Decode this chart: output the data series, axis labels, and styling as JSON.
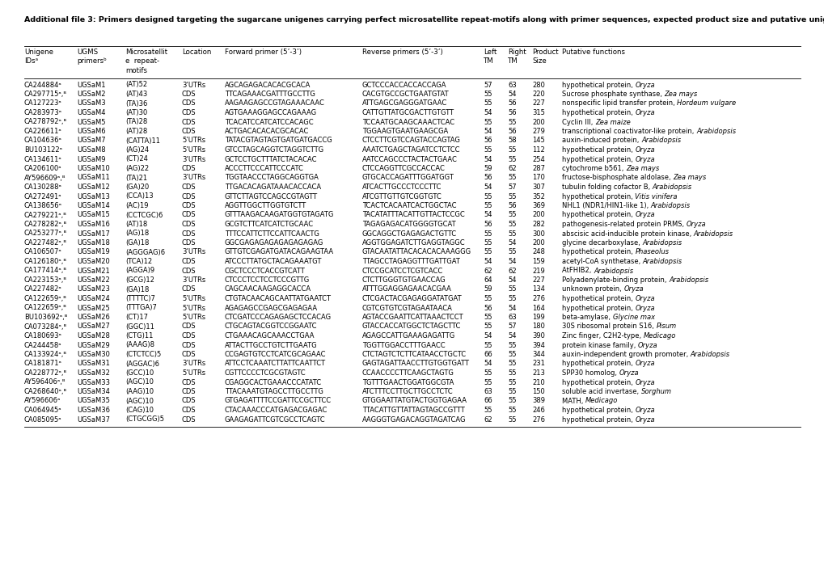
{
  "title": "Additional file 3: Primers designed targeting the sugarcane unigenes carrying perfect microsatellite repeat-motifs along with primer sequences, expected product size and putative unigene function",
  "rows": [
    [
      "CA244884ᵃ",
      "UGSaM1",
      "(AT)52",
      "3’UTRs",
      "AGCAGAGACACACGCACA",
      "GCTCCCACCACCACCAGA",
      "57",
      "63",
      "280",
      "hypothetical protein, Oryza"
    ],
    [
      "CA297715ᵃ,ᴮ",
      "UGSaM2",
      "(AT)43",
      "CDS",
      "TTCAGAAACGATTTGCCTTG",
      "CACGTGCCGCTGAATGTAT",
      "55",
      "54",
      "220",
      "Sucrose phosphate synthase, Zea mays"
    ],
    [
      "CA127223ᵃ",
      "UGSaM3",
      "(TA)36",
      "CDS",
      "AAGAAGAGCCGTAGAAACAAC",
      "ATTGAGCGAGGGATGAAC",
      "55",
      "56",
      "227",
      "nonspecific lipid transfer protein, Hordeum vulgare"
    ],
    [
      "CA283973ᵃ",
      "UGSaM4",
      "(AT)30",
      "CDS",
      "AGTGAAAGGAGCCAGAAAG",
      "CATTGTTATGCGACTTGTGTT",
      "54",
      "56",
      "315",
      "hypothetical protein, Oryza"
    ],
    [
      "CA278792ᵃ,ᴮ",
      "UGSaM5",
      "(TA)28",
      "CDS",
      "TCACATCCATCATCCACAGC",
      "TCCAATGCAAGCAAACTCAC",
      "55",
      "55",
      "200",
      "Cyclin III, Zea maize"
    ],
    [
      "CA226611ᵃ",
      "UGSaM6",
      "(AT)28",
      "CDS",
      "ACTGACACACACGCACAC",
      "TGGAAGTGAATGAAGCGA",
      "54",
      "56",
      "279",
      "transcriptional coactivator-like protein, Arabidopsis"
    ],
    [
      "CA104636ᵃ",
      "UGSaM7",
      "(CATTA)11",
      "5’UTRs",
      "TATACGTAGTAGTGATGATGACCG",
      "CTCCTTCGTCCAGTACCAGTAG",
      "56",
      "58",
      "145",
      "auxin-induced protein, Arabidopsis"
    ],
    [
      "BU103122ᵃ",
      "UGSaM8",
      "(AG)24",
      "5’UTRs",
      "GTCCTAGCAGGTCTAGGTCTTG",
      "AAATCTGAGCTAGATCCTCTCC",
      "55",
      "55",
      "112",
      "hypothetical protein, Oryza"
    ],
    [
      "CA134611ᵃ",
      "UGSaM9",
      "(CT)24",
      "3’UTRs",
      "GCTCCTGCTTTATCTACACAC",
      "AATCCAGCCCTACTACTGAAC",
      "54",
      "55",
      "254",
      "hypothetical protein, Oryza"
    ],
    [
      "CA206100ᵃ",
      "UGSaM10",
      "(AG)22",
      "CDS",
      "ACCCTTCCCATTCCCATC",
      "CTCCAGGTTCGCCACCAC",
      "59",
      "62",
      "287",
      "cytochrome b561, Zea mays"
    ],
    [
      "AY596609ᵃ,ᴮ",
      "UGSaM11",
      "(TA)21",
      "3’UTRs",
      "TGGTAACCCTAGGCAGGTGA",
      "GTGCACCAGATTTGGATGGT",
      "56",
      "55",
      "170",
      "fructose-bisphosphate aldolase, Zea mays"
    ],
    [
      "CA130288ᵃ",
      "UGSaM12",
      "(GA)20",
      "CDS",
      "TTGACACAGATAAACACCACA",
      "ATCACTTGCCCTCCCTTC",
      "54",
      "57",
      "307",
      "tubulin folding cofactor B, Arabidopsis"
    ],
    [
      "CA272491ᵃ",
      "UGSaM13",
      "(CCA)13",
      "CDS",
      "GTTCTTAGTCCAGCCGTAGTT",
      "ATCGTTGTTGTCGGTGTC",
      "55",
      "55",
      "352",
      "hypothetical protein, Vitis vinifera"
    ],
    [
      "CA138656ᵃ",
      "UGSaM14",
      "(AC)19",
      "CDS",
      "AGGTTGGCTTGGTGTCTT",
      "TCACTCACAATCACTGGCTAC",
      "55",
      "56",
      "369",
      "NHL1 (NDR1/HIN1-like 1), Arabidopsis"
    ],
    [
      "CA279221ᵃ,ᴮ",
      "UGSaM15",
      "(CCTCGC)6",
      "CDS",
      "GTTTAAGACAAGATGGTGTAGATG",
      "TACATATTTACATTGTTACTCCGC",
      "54",
      "55",
      "200",
      "hypothetical protein, Oryza"
    ],
    [
      "CA278282ᵃ,ᴮ",
      "UGSaM16",
      "(AT)18",
      "CDS",
      "GCGTCTTCATCATCTGCAAC",
      "TAGAGAGACATGGGGTGCAT",
      "56",
      "55",
      "282",
      "pathogenesis-related protein PRMS, Oryza"
    ],
    [
      "CA253277ᵃ,ᴮ",
      "UGSaM17",
      "(AG)18",
      "CDS",
      "TTTCCATTCTTCCATTCAACTG",
      "GGCAGGCTGAGAGACTGTTC",
      "55",
      "55",
      "300",
      "abscisic acid-inducible protein kinase, Arabidopsis"
    ],
    [
      "CA227482ᵃ,ᴮ",
      "UGSaM18",
      "(GA)18",
      "CDS",
      "GGCGAGAGAGAGAGAGAGAG",
      "AGGTGGAGATCTTGAGGTAGGC",
      "55",
      "54",
      "200",
      "glycine decarboxylase, Arabidopsis"
    ],
    [
      "CA106507ᵃ",
      "UGSaM19",
      "(AGGGAG)6",
      "3’UTRs",
      "GTTGTCGAGATGATACAGAAGTAA",
      "GTACAATATTACACACACAAAGGG",
      "55",
      "55",
      "248",
      "hypothetical protein, Phaseolus"
    ],
    [
      "CA126180ᵃ,ᴮ",
      "UGSaM20",
      "(TCA)12",
      "CDS",
      "ATCCCTTATGCTACAGAAATGT",
      "TTAGCCTAGAGGTTTGATTGAT",
      "54",
      "54",
      "159",
      "acetyl-CoA synthetase, Arabidopsis"
    ],
    [
      "CA177414ᵃ,ᴮ",
      "UGSaM21",
      "(AGGA)9",
      "CDS",
      "CGCTCCCTCACCGTCATT",
      "CTCCGCATCCTCGTCACC",
      "62",
      "62",
      "219",
      "AtFHIB2, Arabidopsis"
    ],
    [
      "CA223153ᵃ,ᴮ",
      "UGSaM22",
      "(GCG)12",
      "3’UTRs",
      "CTCCCTCCTCCTCCCGTTG",
      "CTCTTGGGTGTGAACCAG",
      "64",
      "54",
      "227",
      "Polyadenylate-binding protein, Arabidopsis"
    ],
    [
      "CA227482ᵃ",
      "UGSaM23",
      "(GA)18",
      "CDS",
      "CAGCAACAAGAGGCACCA",
      "ATTTGGAGGAGAACACGAA",
      "59",
      "55",
      "134",
      "unknown protein, Oryza"
    ],
    [
      "CA122659ᵃ,ᴮ",
      "UGSaM24",
      "(TTTTC)7",
      "5’UTRs",
      "CTGTACAACAGCAATTATGAATCT",
      "CTCGACTACGAGAGGATATGAT",
      "55",
      "55",
      "276",
      "hypothetical protein, Oryza"
    ],
    [
      "CA122659ᵃ,ᴮ",
      "UGSaM25",
      "(TTTGA)7",
      "5’UTRs",
      "AGAGAGCCGAGCGAGAGAA",
      "CGTCGTGTCGTAGAATAACA",
      "56",
      "54",
      "164",
      "hypothetical protein, Oryza"
    ],
    [
      "BU103692ᵃ,ᴮ",
      "UGSaM26",
      "(CT)17",
      "5’UTRs",
      "CTCGATCCCAGAGAGCTCCACAG",
      "AGTACCGAATTCATTAAACTCCT",
      "55",
      "63",
      "199",
      "beta-amylase, Glycine max"
    ],
    [
      "CA073284ᵃ,ᴮ",
      "UGSaM27",
      "(GGC)11",
      "CDS",
      "CTGCAGTACGGTCCGGAATC",
      "GTACCACCATGGCTCTAGCTTC",
      "55",
      "57",
      "180",
      "30S ribosomal protein S16, Pisum"
    ],
    [
      "CA180693ᵃ",
      "UGSaM28",
      "(CTG)11",
      "CDS",
      "CTGAAACAGCAAACCTGAA",
      "AGAGCCATTGAAAGAGATTG",
      "54",
      "54",
      "390",
      "Zinc finger, C2H2-type, Medicago"
    ],
    [
      "CA244458ᵃ",
      "UGSaM29",
      "(AAAG)8",
      "CDS",
      "ATTACTTGCCTGTCTTGAATG",
      "TGGTTGGACCTTTGAACC",
      "55",
      "55",
      "394",
      "protein kinase family, Oryza"
    ],
    [
      "CA133924ᵃ,ᴮ",
      "UGSaM30",
      "(CTCTCC)5",
      "CDS",
      "CCGAGTGTCCTCATCGCAGAAC",
      "CTCTAGTCTCTTCATAACCTGCTC",
      "66",
      "55",
      "344",
      "auxin-independent growth promoter, Arabidopsis"
    ],
    [
      "CA181871ᵃ",
      "UGSaM31",
      "(AGGAC)6",
      "3’UTRs",
      "ATTCCTCAAATCTTATTCAATTCT",
      "GAGTAGATTAACCTTGTGGTGATT",
      "54",
      "55",
      "231",
      "hypothetical protein, Oryza"
    ],
    [
      "CA228772ᵃ,ᴮ",
      "UGSaM32",
      "(GCC)10",
      "5’UTRs",
      "CGTTCCCCTCGCGTAGTC",
      "CCAACCCCTTCAAGCTAGTG",
      "55",
      "55",
      "213",
      "SPP30 homolog, Oryza"
    ],
    [
      "AY596406ᵃ,ᴮ",
      "UGSaM33",
      "(AGC)10",
      "CDS",
      "CGAGGCACTGAAACCCATATC",
      "TGTTTGAACTGGATGGCGTA",
      "55",
      "55",
      "210",
      "hypothetical protein, Oryza"
    ],
    [
      "CA268640ᵃ,ᴮ",
      "UGSaM34",
      "(AAG)10",
      "CDS",
      "TTACAAATGTAGCCTTGCCTTG",
      "ATCTTTCCTTGCTTGCCTCTC",
      "63",
      "55",
      "150",
      "soluble acid invertase, Sorghum"
    ],
    [
      "AY596606ᵃ",
      "UGSaM35",
      "(AGC)10",
      "CDS",
      "GTGAGATTTTCCGATTCCGCTTCC",
      "GTGGAATTATGTACTGGTGAGAA",
      "66",
      "55",
      "389",
      "MATH, Medicago"
    ],
    [
      "CA064945ᵃ",
      "UGSaM36",
      "(CAG)10",
      "CDS",
      "CTACAAACCCATGAGACGAGAC",
      "TTACATTGTTATTAGTAGCCGTTT",
      "55",
      "55",
      "246",
      "hypothetical protein, Oryza"
    ],
    [
      "CA085095ᵃ",
      "UGSaM37",
      "(CTGCGG)5",
      "CDS",
      "GAAGAGATTCGTCGCCTCAGTC",
      "AAGGGTGAGACAGGTAGATCAG",
      "62",
      "55",
      "276",
      "hypothetical protein, Oryza"
    ]
  ],
  "putative_italic": [
    [
      "hypothetical protein, ",
      "Oryza"
    ],
    [
      "Sucrose phosphate synthase, ",
      "Zea mays"
    ],
    [
      "nonspecific lipid transfer protein, ",
      "Hordeum vulgare"
    ],
    [
      "hypothetical protein, ",
      "Oryza"
    ],
    [
      "Cyclin III, ",
      "Zea maize"
    ],
    [
      "transcriptional coactivator-like protein, ",
      "Arabidopsis"
    ],
    [
      "auxin-induced protein, ",
      "Arabidopsis"
    ],
    [
      "hypothetical protein, ",
      "Oryza"
    ],
    [
      "hypothetical protein, ",
      "Oryza"
    ],
    [
      "cytochrome b561, ",
      "Zea mays"
    ],
    [
      "fructose-bisphosphate aldolase, ",
      "Zea mays"
    ],
    [
      "tubulin folding cofactor B, ",
      "Arabidopsis"
    ],
    [
      "hypothetical protein, ",
      "Vitis vinifera"
    ],
    [
      "NHL1 (NDR1/HIN1-like 1), ",
      "Arabidopsis"
    ],
    [
      "hypothetical protein, ",
      "Oryza"
    ],
    [
      "pathogenesis-related protein PRMS, ",
      "Oryza"
    ],
    [
      "abscisic acid-inducible protein kinase, ",
      "Arabidopsis"
    ],
    [
      "glycine decarboxylase, ",
      "Arabidopsis"
    ],
    [
      "hypothetical protein, ",
      "Phaseolus"
    ],
    [
      "acetyl-CoA synthetase, ",
      "Arabidopsis"
    ],
    [
      "AtFHIB2, ",
      "Arabidopsis"
    ],
    [
      "Polyadenylate-binding protein, ",
      "Arabidopsis"
    ],
    [
      "unknown protein, ",
      "Oryza"
    ],
    [
      "hypothetical protein, ",
      "Oryza"
    ],
    [
      "hypothetical protein, ",
      "Oryza"
    ],
    [
      "beta-amylase, ",
      "Glycine max"
    ],
    [
      "30S ribosomal protein S16, ",
      "Pisum"
    ],
    [
      "Zinc finger, C2H2-type, ",
      "Medicago"
    ],
    [
      "protein kinase family, ",
      "Oryza"
    ],
    [
      "auxin-independent growth promoter, ",
      "Arabidopsis"
    ],
    [
      "hypothetical protein, ",
      "Oryza"
    ],
    [
      "SPP30 homolog, ",
      "Oryza"
    ],
    [
      "hypothetical protein, ",
      "Oryza"
    ],
    [
      "soluble acid invertase, ",
      "Sorghum"
    ],
    [
      "MATH, ",
      "Medicago"
    ],
    [
      "hypothetical protein, ",
      "Oryza"
    ],
    [
      "hypothetical protein, ",
      "Oryza"
    ]
  ],
  "font_size": 6.0,
  "header_font_size": 6.2,
  "title_font_size": 6.8
}
